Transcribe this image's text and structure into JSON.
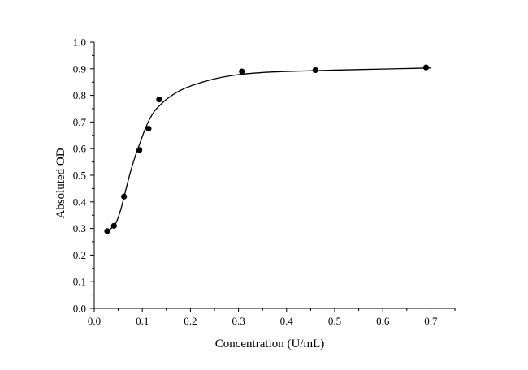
{
  "chart_data": {
    "type": "scatter",
    "title": "",
    "xlabel": "Concentration (U/mL)",
    "ylabel": "Absoluted OD",
    "xlim": [
      0.0,
      0.75
    ],
    "ylim": [
      0.0,
      1.0
    ],
    "x_ticks": [
      "0.0",
      "0.1",
      "0.2",
      "0.3",
      "0.4",
      "0.5",
      "0.6",
      "0.7"
    ],
    "y_ticks": [
      "0.0",
      "0.1",
      "0.2",
      "0.3",
      "0.4",
      "0.5",
      "0.6",
      "0.7",
      "0.8",
      "0.9",
      "1.0"
    ],
    "grid": false,
    "series": [
      {
        "type": "scatter",
        "x": [
          0.027,
          0.041,
          0.062,
          0.094,
          0.113,
          0.135,
          0.307,
          0.46,
          0.69
        ],
        "y": [
          0.29,
          0.31,
          0.42,
          0.595,
          0.675,
          0.785,
          0.89,
          0.895,
          0.905
        ]
      },
      {
        "type": "line",
        "x": [
          0.025,
          0.035,
          0.045,
          0.055,
          0.065,
          0.075,
          0.085,
          0.095,
          0.105,
          0.115,
          0.125,
          0.135,
          0.15,
          0.175,
          0.2,
          0.25,
          0.3,
          0.35,
          0.4,
          0.5,
          0.6,
          0.7
        ],
        "y": [
          0.29,
          0.3,
          0.32,
          0.37,
          0.44,
          0.51,
          0.57,
          0.62,
          0.67,
          0.71,
          0.74,
          0.76,
          0.785,
          0.815,
          0.835,
          0.862,
          0.878,
          0.886,
          0.89,
          0.895,
          0.899,
          0.903
        ]
      }
    ]
  }
}
